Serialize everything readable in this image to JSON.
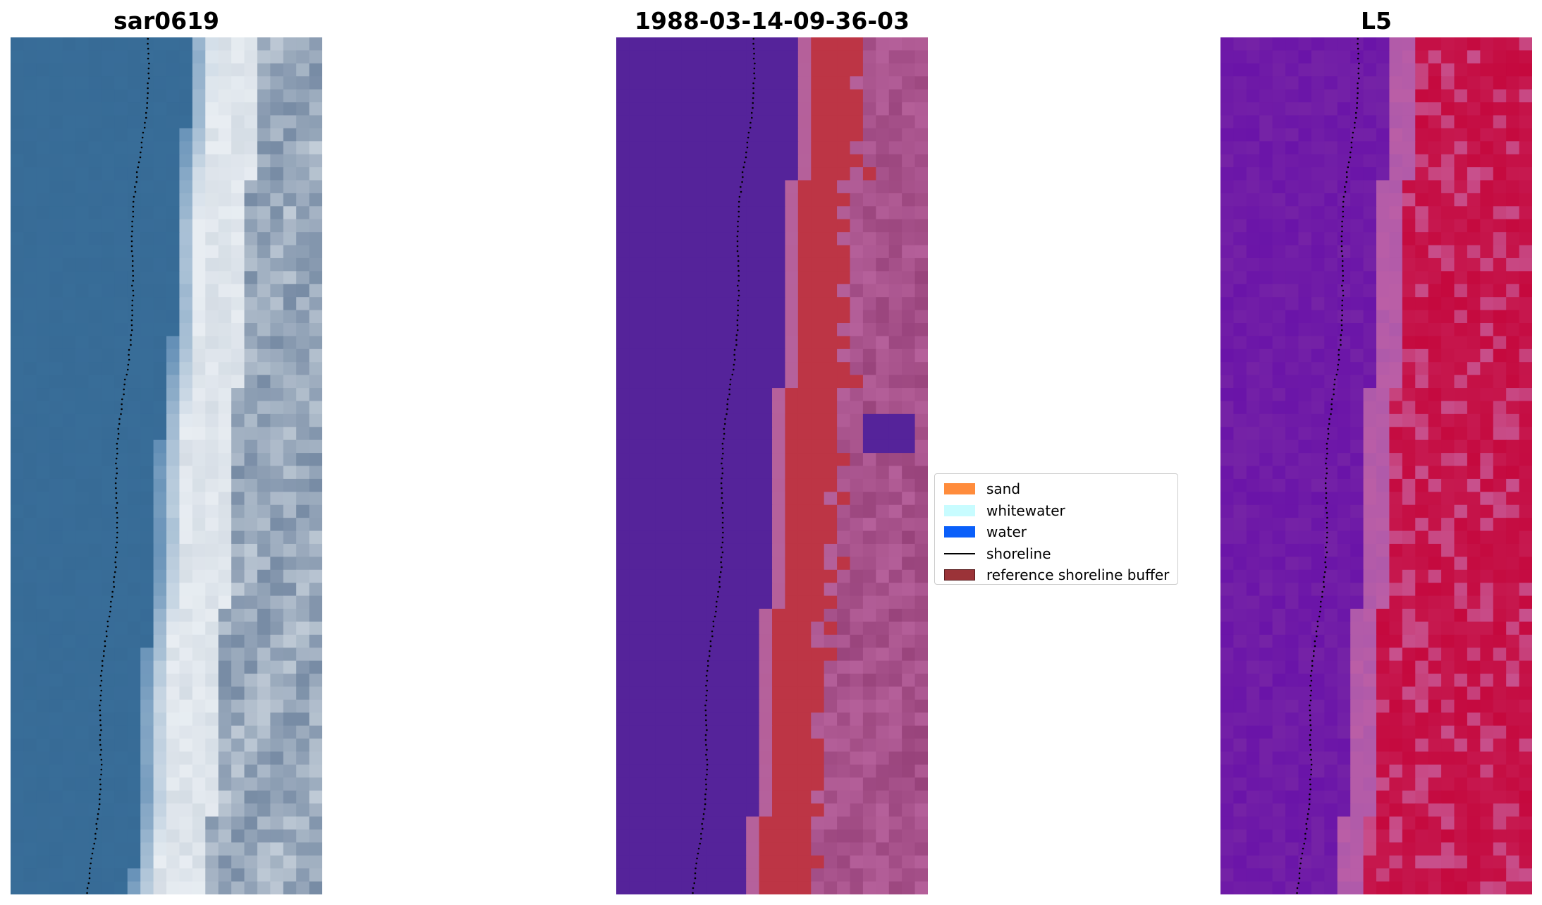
{
  "panels": [
    {
      "title": "sar0619"
    },
    {
      "title": "1988-03-14-09-36-03"
    },
    {
      "title": "L5"
    }
  ],
  "legend": {
    "items": [
      {
        "label": "sand",
        "kind": "patch",
        "color": "#ff8c3c"
      },
      {
        "label": "whitewater",
        "kind": "patch",
        "color": "#c8fcff"
      },
      {
        "label": "water",
        "kind": "patch",
        "color": "#0a5ffa"
      },
      {
        "label": "shoreline",
        "kind": "line",
        "color": "#000000"
      },
      {
        "label": "reference shoreline buffer",
        "kind": "patch",
        "color": "#9b3338",
        "edge": "#5a1d20"
      }
    ]
  },
  "colors": {
    "sea_rgb": "#376b96",
    "foam_rgb": "#e8edf2",
    "class_water": "#55239a",
    "class_buffer": "#bd3545",
    "class_land": "#b5609a",
    "mndwi_low": "#6a14a8",
    "mndwi_high": "#c5093e"
  }
}
